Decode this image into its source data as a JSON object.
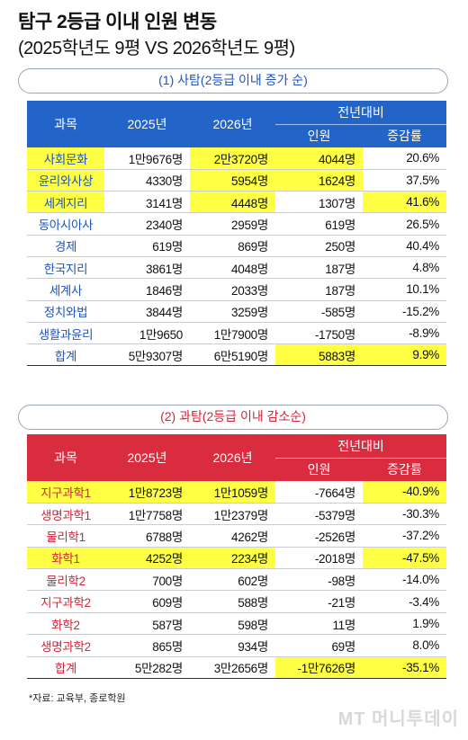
{
  "title": "탐구 2등급 이내 인원 변동",
  "subtitle": "(2025학년도 9평 VS 2026학년도 9평)",
  "headers": {
    "subject": "과목",
    "y2025": "2025년",
    "y2026": "2026년",
    "yoy": "전년대비",
    "people": "인원",
    "rate": "증감률"
  },
  "social": {
    "caption": "(1) 사탐(2등급 이내 증가 순)",
    "rows": [
      {
        "subject": "사회문화",
        "y2025": "1만9676명",
        "y2026": "2만3720명",
        "diff": "4044명",
        "rate": "20.6%",
        "hl": [
          true,
          false,
          true,
          true,
          false
        ]
      },
      {
        "subject": "윤리와사상",
        "y2025": "4330명",
        "y2026": "5954명",
        "diff": "1624명",
        "rate": "37.5%",
        "hl": [
          true,
          false,
          true,
          true,
          false
        ]
      },
      {
        "subject": "세계지리",
        "y2025": "3141명",
        "y2026": "4448명",
        "diff": "1307명",
        "rate": "41.6%",
        "hl": [
          true,
          false,
          true,
          false,
          true
        ]
      },
      {
        "subject": "동아시아사",
        "y2025": "2340명",
        "y2026": "2959명",
        "diff": "619명",
        "rate": "26.5%",
        "hl": [
          false,
          false,
          false,
          false,
          false
        ]
      },
      {
        "subject": "경제",
        "y2025": "619명",
        "y2026": "869명",
        "diff": "250명",
        "rate": "40.4%",
        "hl": [
          false,
          false,
          false,
          false,
          false
        ]
      },
      {
        "subject": "한국지리",
        "y2025": "3861명",
        "y2026": "4048명",
        "diff": "187명",
        "rate": "4.8%",
        "hl": [
          false,
          false,
          false,
          false,
          false
        ]
      },
      {
        "subject": "세계사",
        "y2025": "1846명",
        "y2026": "2033명",
        "diff": "187명",
        "rate": "10.1%",
        "hl": [
          false,
          false,
          false,
          false,
          false
        ]
      },
      {
        "subject": "정치와법",
        "y2025": "3844명",
        "y2026": "3259명",
        "diff": "-585명",
        "rate": "-15.2%",
        "hl": [
          false,
          false,
          false,
          false,
          false
        ]
      },
      {
        "subject": "생활과윤리",
        "y2025": "1만9650",
        "y2026": "1만7900명",
        "diff": "-1750명",
        "rate": "-8.9%",
        "hl": [
          false,
          false,
          false,
          false,
          false
        ]
      }
    ],
    "total": {
      "subject": "합계",
      "y2025": "5만9307명",
      "y2026": "6만5190명",
      "diff": "5883명",
      "rate": "9.9%",
      "hl": [
        false,
        false,
        false,
        true,
        true
      ]
    }
  },
  "science": {
    "caption": "(2) 과탐(2등급 이내 감소순)",
    "rows": [
      {
        "subject": "지구과학1",
        "y2025": "1만8723명",
        "y2026": "1만1059명",
        "diff": "-7664명",
        "rate": "-40.9%",
        "hl": [
          true,
          true,
          true,
          false,
          true
        ]
      },
      {
        "subject": "생명과학1",
        "y2025": "1만7758명",
        "y2026": "1만2379명",
        "diff": "-5379명",
        "rate": "-30.3%",
        "hl": [
          false,
          false,
          false,
          false,
          false
        ]
      },
      {
        "subject": "물리학1",
        "y2025": "6788명",
        "y2026": "4262명",
        "diff": "-2526명",
        "rate": "-37.2%",
        "hl": [
          false,
          false,
          false,
          false,
          false
        ]
      },
      {
        "subject": "화학1",
        "y2025": "4252명",
        "y2026": "2234명",
        "diff": "-2018명",
        "rate": "-47.5%",
        "hl": [
          true,
          true,
          true,
          false,
          true
        ]
      },
      {
        "subject": "물리학2",
        "y2025": "700명",
        "y2026": "602명",
        "diff": "-98명",
        "rate": "-14.0%",
        "hl": [
          false,
          false,
          false,
          false,
          false
        ]
      },
      {
        "subject": "지구과학2",
        "y2025": "609명",
        "y2026": "588명",
        "diff": "-21명",
        "rate": "-3.4%",
        "hl": [
          false,
          false,
          false,
          false,
          false
        ]
      },
      {
        "subject": "화학2",
        "y2025": "587명",
        "y2026": "598명",
        "diff": "11명",
        "rate": "1.9%",
        "hl": [
          false,
          false,
          false,
          false,
          false
        ]
      },
      {
        "subject": "생명과학2",
        "y2025": "865명",
        "y2026": "934명",
        "diff": "69명",
        "rate": "8.0%",
        "hl": [
          false,
          false,
          false,
          false,
          false
        ]
      }
    ],
    "total": {
      "subject": "합계",
      "y2025": "5만282명",
      "y2026": "3만2656명",
      "diff": "-1만7626명",
      "rate": "-35.1%",
      "hl": [
        false,
        false,
        false,
        true,
        true
      ]
    }
  },
  "source": "*자료: 교육부, 종로학원",
  "watermark": "MT 머니투데이",
  "colors": {
    "blue": "#2264c8",
    "red": "#d92c3e",
    "highlight": "#ffff44"
  }
}
